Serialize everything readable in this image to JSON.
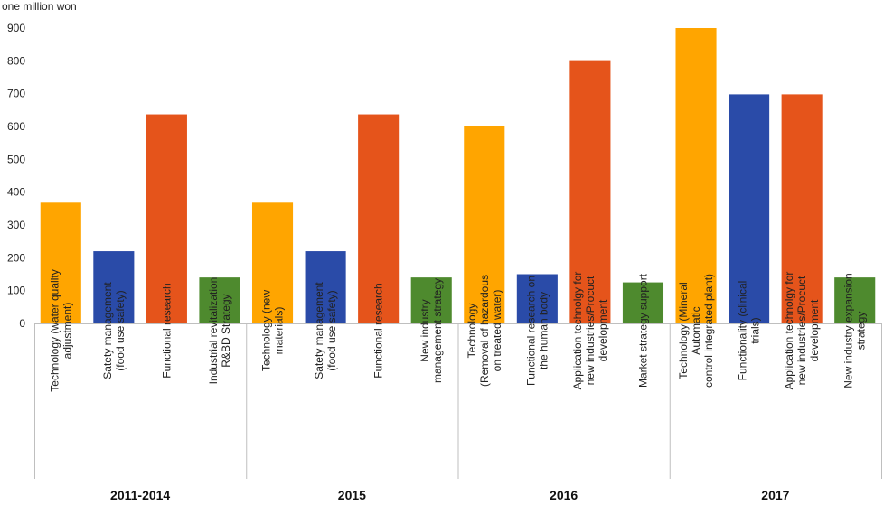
{
  "chart_data": {
    "type": "bar",
    "ylabel": "one million won",
    "ylim": [
      0,
      900
    ],
    "yticks": [
      0,
      100,
      200,
      300,
      400,
      500,
      600,
      700,
      800,
      900
    ],
    "grid": false,
    "legend": "none",
    "categories": [
      [
        "Technology (water quality",
        "adjustment)"
      ],
      [
        "Satety management",
        "(food use safety)"
      ],
      [
        "Functional research"
      ],
      [
        "Industrial revitalization",
        "R&BD Strategy"
      ],
      [
        "Technology (new",
        "materials)"
      ],
      [
        "Satety management",
        "(food use safety)"
      ],
      [
        "Functional research"
      ],
      [
        "New industry",
        "management strategy"
      ],
      [
        "Technology",
        "(Removal of hazardous",
        "on treated water)"
      ],
      [
        "Functional research on",
        "the human body"
      ],
      [
        "Application technolgy for",
        "new industries/Procuct",
        "development"
      ],
      [
        "Market strategy support"
      ],
      [
        "Technology (Mineral",
        "Automatic",
        "control integrated plant)"
      ],
      [
        "Functionality (clinical",
        "trials)"
      ],
      [
        "Application technolgy for",
        "new industries/Procuct",
        "development"
      ],
      [
        "New industry expansion",
        "strategy"
      ]
    ],
    "values": [
      368,
      220,
      637,
      140,
      368,
      220,
      637,
      140,
      600,
      150,
      802,
      125,
      900,
      698,
      698,
      140
    ],
    "colors": [
      "#FFA500",
      "#2A4BA8",
      "#E5541B",
      "#4E8A2E",
      "#FFA500",
      "#2A4BA8",
      "#E5541B",
      "#4E8A2E",
      "#FFA500",
      "#2A4BA8",
      "#E5541B",
      "#4E8A2E",
      "#FFA500",
      "#2A4BA8",
      "#E5541B",
      "#4E8A2E"
    ],
    "groups": [
      {
        "label": "2011-2014",
        "count": 4
      },
      {
        "label": "2015",
        "count": 4
      },
      {
        "label": "2016",
        "count": 4
      },
      {
        "label": "2017",
        "count": 4
      }
    ]
  }
}
